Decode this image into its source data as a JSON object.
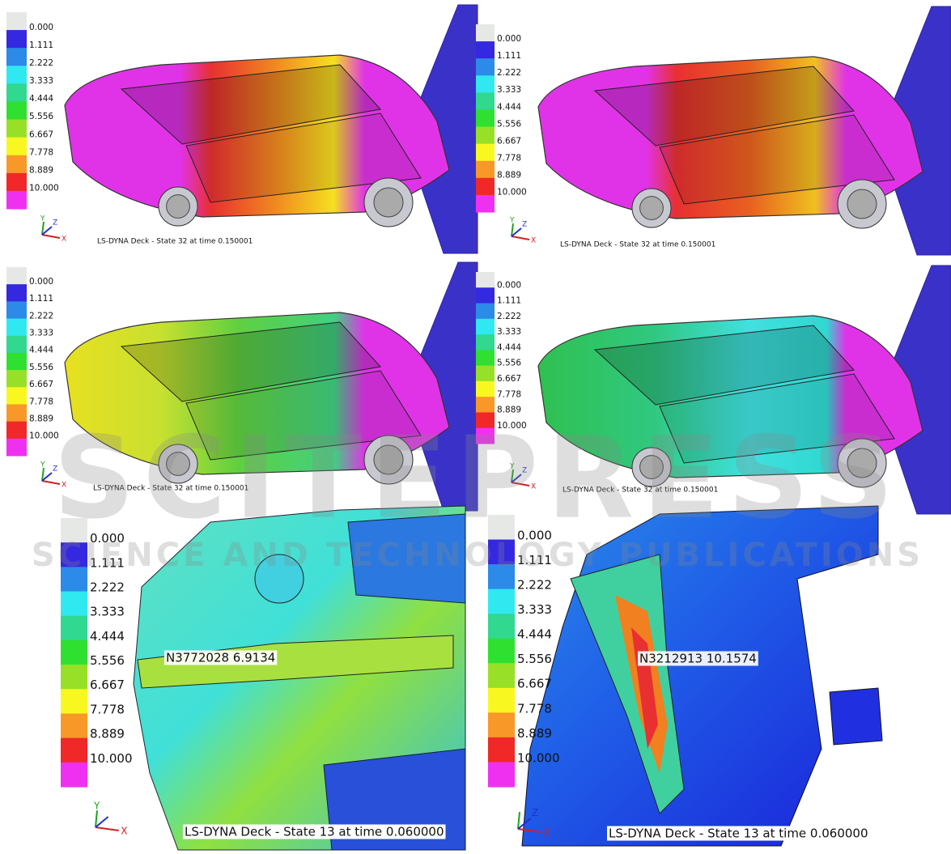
{
  "panels": [
    {
      "legend": [
        "0.000",
        "1.111",
        "2.222",
        "3.333",
        "4.444",
        "5.556",
        "6.667",
        "7.778",
        "8.889",
        "10.000"
      ],
      "caption": "LS-DYNA Deck - State 32 at time 0.150001",
      "axes": {
        "x": "X",
        "y": "Y",
        "z": "Z"
      }
    },
    {
      "legend": [
        "0.000",
        "1.111",
        "2.222",
        "3.333",
        "4.444",
        "5.556",
        "6.667",
        "7.778",
        "8.889",
        "10.000"
      ],
      "caption": "LS-DYNA Deck - State 32 at time 0.150001",
      "axes": {
        "x": "X",
        "y": "Y",
        "z": "Z"
      }
    },
    {
      "legend": [
        "0.000",
        "1.111",
        "2.222",
        "3.333",
        "4.444",
        "5.556",
        "6.667",
        "7.778",
        "8.889",
        "10.000"
      ],
      "caption": "LS-DYNA Deck - State 32 at time 0.150001",
      "axes": {
        "x": "X",
        "y": "Y",
        "z": "Z"
      }
    },
    {
      "legend": [
        "0.000",
        "1.111",
        "2.222",
        "3.333",
        "4.444",
        "5.556",
        "6.667",
        "7.778",
        "8.889",
        "10.000"
      ],
      "caption": "LS-DYNA Deck - State 32 at time 0.150001",
      "axes": {
        "x": "X",
        "y": "Y",
        "z": "Z"
      }
    },
    {
      "legend": [
        "0.000",
        "1.111",
        "2.222",
        "3.333",
        "4.444",
        "5.556",
        "6.667",
        "7.778",
        "8.889",
        "10.000"
      ],
      "caption": "LS-DYNA Deck - State 13 at time 0.060000",
      "node_label": "N3772028 6.9134",
      "axes": {
        "x": "X",
        "y": "Y"
      }
    },
    {
      "legend": [
        "0.000",
        "1.111",
        "2.222",
        "3.333",
        "4.444",
        "5.556",
        "6.667",
        "7.778",
        "8.889",
        "10.000"
      ],
      "caption": "LS-DYNA Deck - State 13 at time 0.060000",
      "node_label": "N3212913 10.1574",
      "axes": {
        "x": "X",
        "z": "Z"
      }
    }
  ],
  "watermark": {
    "title": "SCITEPRESS",
    "subtitle": "SCIENCE AND TECHNOLOGY PUBLICATIONS"
  }
}
